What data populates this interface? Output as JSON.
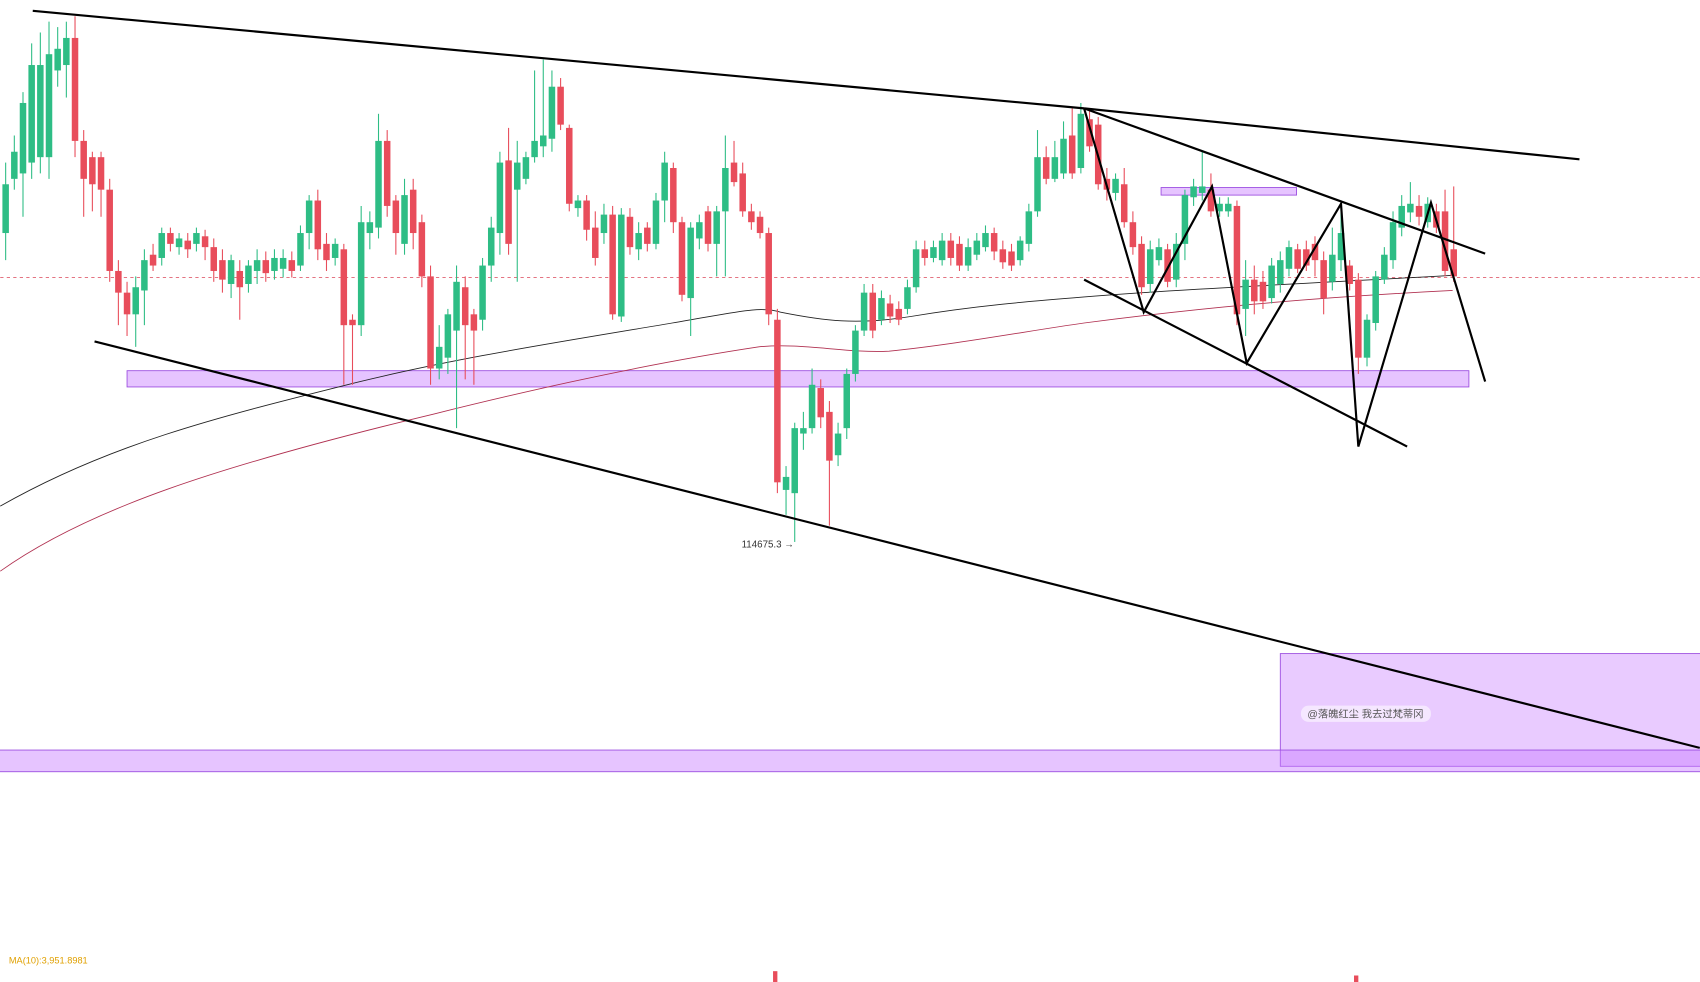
{
  "price_label": "114675.3 →",
  "watermark": "@落魄红尘 我去过梵蒂冈",
  "indicator": "MA(10):3,951.8981"
}
